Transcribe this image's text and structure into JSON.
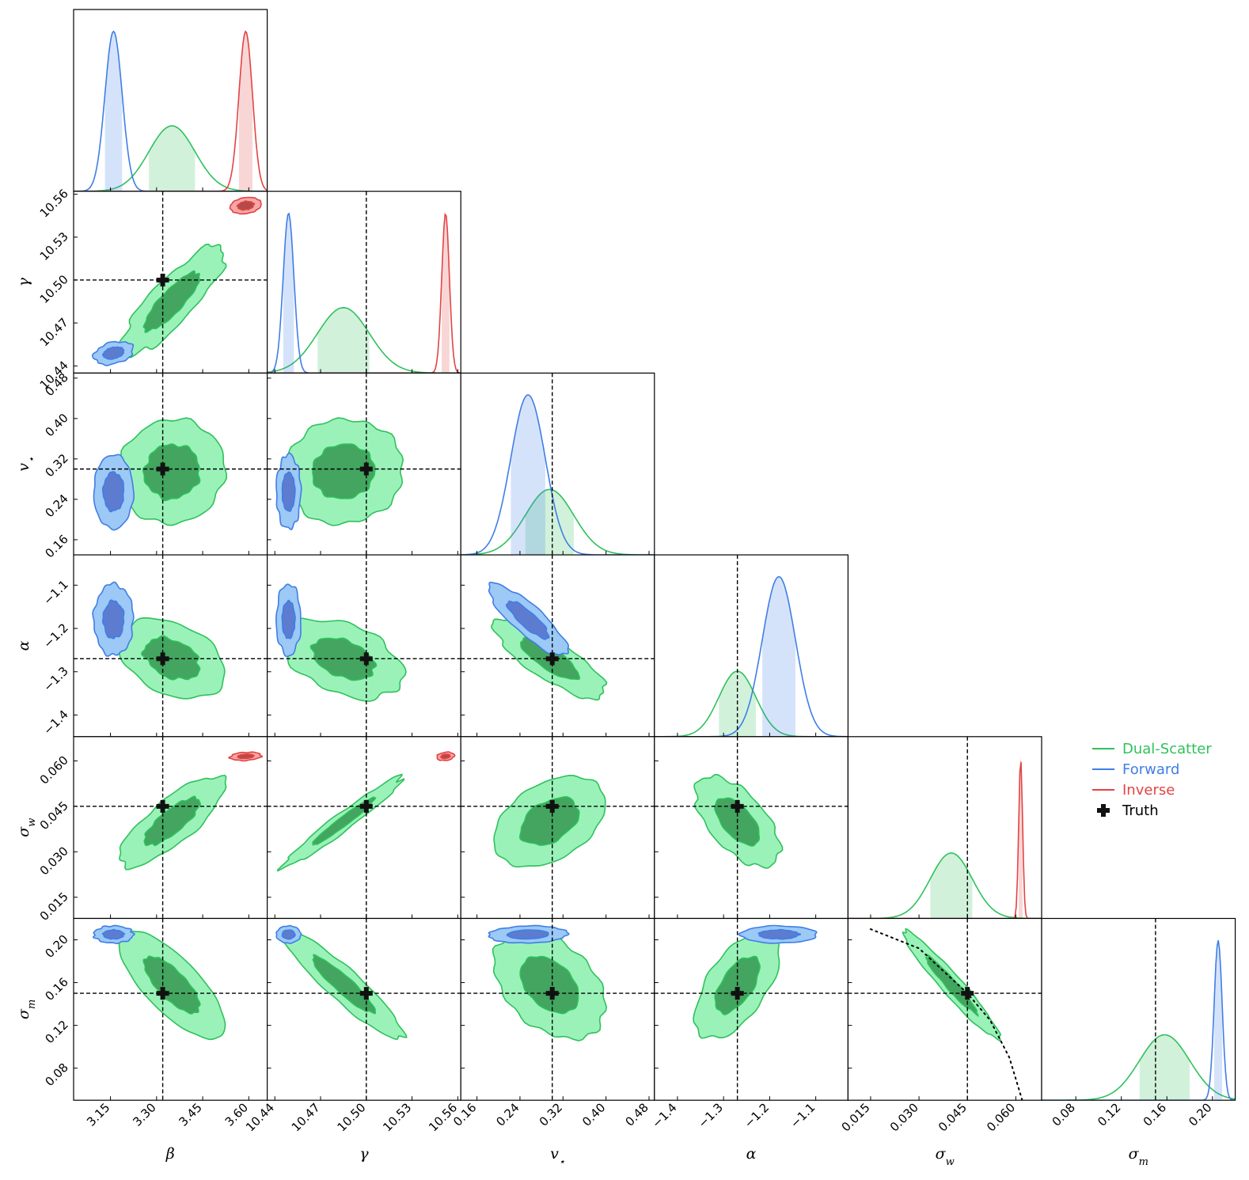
{
  "chart_data": {
    "type": "corner",
    "title": "",
    "parameters": [
      {
        "key": "beta",
        "label": "β",
        "sub": "",
        "range": [
          3.03,
          3.66
        ],
        "truth": 3.32,
        "ticks": [
          "3.15",
          "3.30",
          "3.45",
          "3.60"
        ],
        "tick_values": [
          3.15,
          3.3,
          3.45,
          3.6
        ]
      },
      {
        "key": "gamma",
        "label": "γ",
        "sub": "",
        "range": [
          10.435,
          10.562
        ],
        "truth": 10.5,
        "ticks": [
          "10.44",
          "10.47",
          "10.50",
          "10.53",
          "10.56"
        ],
        "tick_values": [
          10.44,
          10.47,
          10.5,
          10.53,
          10.56
        ]
      },
      {
        "key": "vstar",
        "label": "v",
        "sub": "⋆",
        "range": [
          0.13,
          0.49
        ],
        "truth": 0.3,
        "ticks": [
          "0.16",
          "0.24",
          "0.32",
          "0.40",
          "0.48"
        ],
        "tick_values": [
          0.16,
          0.24,
          0.32,
          0.4,
          0.48
        ]
      },
      {
        "key": "alpha",
        "label": "α",
        "sub": "",
        "range": [
          -1.45,
          -1.03
        ],
        "truth": -1.27,
        "ticks": [
          "−1.4",
          "−1.3",
          "−1.2",
          "−1.1"
        ],
        "tick_values": [
          -1.4,
          -1.3,
          -1.2,
          -1.1
        ]
      },
      {
        "key": "sigw",
        "label": "σ",
        "sub": "w",
        "range": [
          0.008,
          0.068
        ],
        "truth": 0.045,
        "ticks": [
          "0.015",
          "0.030",
          "0.045",
          "0.060"
        ],
        "tick_values": [
          0.015,
          0.03,
          0.045,
          0.06
        ]
      },
      {
        "key": "sigm",
        "label": "σ",
        "sub": "m",
        "range": [
          0.05,
          0.22
        ],
        "truth": 0.15,
        "ticks": [
          "0.08",
          "0.12",
          "0.16",
          "0.20"
        ],
        "tick_values": [
          0.08,
          0.12,
          0.16,
          0.2
        ]
      }
    ],
    "series": [
      {
        "name": "Dual-Scatter",
        "color": "#2fc15c",
        "fill_outer": "#9af2b9",
        "fill_inner": "#43a55f",
        "means": [
          3.35,
          10.485,
          0.295,
          -1.27,
          0.04,
          0.158
        ],
        "sds": [
          0.075,
          0.017,
          0.045,
          0.04,
          0.0065,
          0.022
        ],
        "corr": [
          [
            1.0,
            0.85,
            0.05,
            -0.35,
            0.8,
            -0.75
          ],
          [
            0.85,
            1.0,
            0.05,
            -0.4,
            0.97,
            -0.92
          ],
          [
            0.05,
            0.05,
            1.0,
            -0.8,
            0.4,
            -0.4
          ],
          [
            -0.35,
            -0.4,
            -0.8,
            1.0,
            -0.6,
            0.6
          ],
          [
            0.8,
            0.97,
            0.4,
            -0.6,
            1.0,
            -0.96
          ],
          [
            -0.75,
            -0.92,
            -0.4,
            0.6,
            -0.96,
            1.0
          ]
        ]
      },
      {
        "name": "Forward",
        "color": "#3f7ee6",
        "fill_outer": "#9cc9f5",
        "fill_inner": "#5d7ccf",
        "means": [
          3.16,
          10.449,
          0.255,
          -1.18,
          null,
          0.205
        ],
        "sds": [
          0.028,
          0.0035,
          0.032,
          0.036,
          null,
          0.0035
        ],
        "corr": [
          [
            1.0,
            0.3,
            0.0,
            0.0,
            0.0,
            0.0
          ],
          [
            0.3,
            1.0,
            0.0,
            0.0,
            0.0,
            0.0
          ],
          [
            0.0,
            0.0,
            1.0,
            -0.85,
            0.0,
            0.1
          ],
          [
            0.0,
            0.0,
            -0.85,
            1.0,
            0.0,
            0.0
          ],
          [
            0.0,
            0.0,
            0.0,
            0.0,
            1.0,
            0.0
          ],
          [
            0.0,
            0.0,
            0.1,
            0.0,
            0.0,
            1.0
          ]
        ]
      },
      {
        "name": "Inverse",
        "color": "#e34343",
        "fill_outer": "#f7a7a7",
        "fill_inner": "#b44a4a",
        "means": [
          3.59,
          10.552,
          null,
          null,
          0.0615,
          null
        ],
        "sds": [
          0.022,
          0.0025,
          null,
          null,
          0.0006,
          null
        ],
        "corr": [
          [
            1.0,
            0.2,
            0.0,
            0.0,
            0.2,
            0.0
          ],
          [
            0.2,
            1.0,
            0.0,
            0.0,
            0.2,
            0.0
          ],
          [
            0.0,
            0.0,
            1.0,
            0.0,
            0.0,
            0.0
          ],
          [
            0.0,
            0.0,
            0.0,
            1.0,
            0.0,
            0.0
          ],
          [
            0.2,
            0.2,
            0.0,
            0.0,
            1.0,
            0.0
          ],
          [
            0.0,
            0.0,
            0.0,
            0.0,
            0.0,
            1.0
          ]
        ]
      }
    ],
    "truth_marker": {
      "name": "Truth",
      "color": "#111111"
    },
    "legend": [
      "Dual-Scatter",
      "Forward",
      "Inverse",
      "Truth"
    ],
    "legend_placement": "right",
    "relation_curve": {
      "panel": "sigm vs sigw",
      "style": "dotted",
      "points": [
        [
          0.015,
          0.21
        ],
        [
          0.03,
          0.192
        ],
        [
          0.045,
          0.15
        ],
        [
          0.052,
          0.125
        ],
        [
          0.058,
          0.09
        ],
        [
          0.062,
          0.05
        ]
      ]
    }
  }
}
